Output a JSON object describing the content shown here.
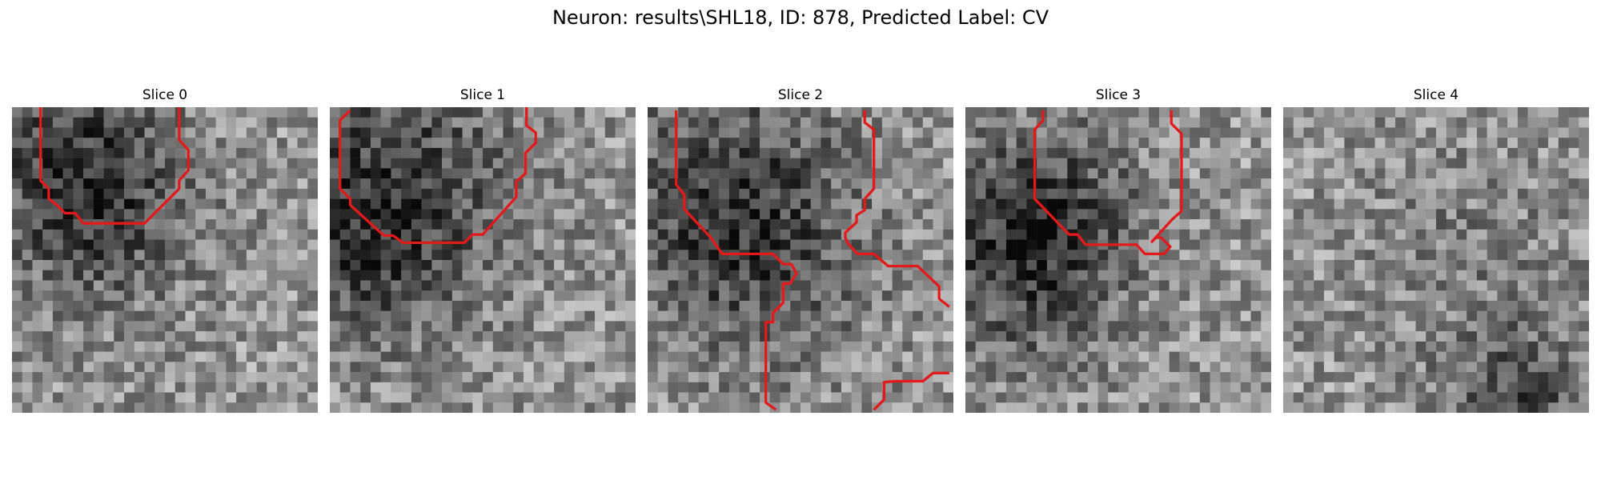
{
  "figure": {
    "title": "Neuron: results\\SHL18, ID: 878, Predicted Label: CV"
  },
  "panels": [
    {
      "title": "Slice 0"
    },
    {
      "title": "Slice 1"
    },
    {
      "title": "Slice 2"
    },
    {
      "title": "Slice 3"
    },
    {
      "title": "Slice 4"
    }
  ],
  "colors": {
    "contour": "#e31a1c",
    "background": "#ffffff"
  },
  "colormap": "gray"
}
